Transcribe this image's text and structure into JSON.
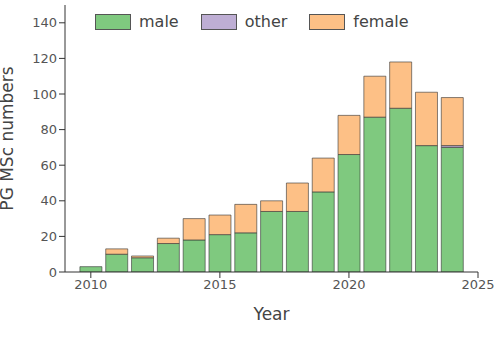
{
  "chart_data": {
    "type": "bar",
    "stacked": true,
    "x_label": "Year",
    "y_label": "PG MSc numbers",
    "x": [
      2010,
      2011,
      2012,
      2013,
      2014,
      2015,
      2016,
      2017,
      2018,
      2019,
      2020,
      2021,
      2022,
      2023,
      2024
    ],
    "series": [
      {
        "name": "male",
        "color": "#7fc97f",
        "values": [
          3,
          10,
          8,
          16,
          18,
          21,
          22,
          34,
          34,
          45,
          66,
          87,
          92,
          71,
          70
        ]
      },
      {
        "name": "other",
        "color": "#beaed4",
        "values": [
          0,
          0,
          0,
          0,
          0,
          0,
          0,
          0,
          0,
          0,
          0,
          0,
          0,
          0,
          1
        ]
      },
      {
        "name": "female",
        "color": "#fdc086",
        "values": [
          0,
          3,
          1,
          3,
          12,
          11,
          16,
          6,
          16,
          19,
          22,
          23,
          26,
          30,
          27
        ]
      }
    ],
    "xlim": [
      2009,
      2025
    ],
    "xticks": [
      2010,
      2015,
      2020,
      2025
    ],
    "ylim": [
      0,
      150
    ],
    "yticks": [
      0,
      20,
      40,
      60,
      80,
      100,
      120,
      140
    ],
    "grid": false,
    "legend": "top"
  }
}
